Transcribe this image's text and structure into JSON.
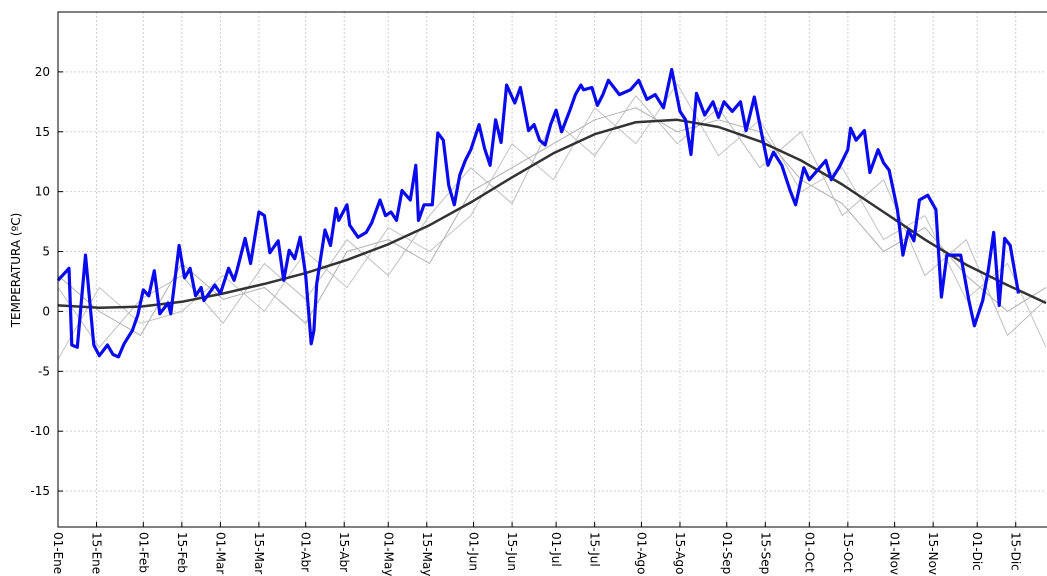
{
  "chart_data": {
    "type": "line",
    "ylabel": "TEMPERATURA (ºC)",
    "xlim": [
      0,
      359
    ],
    "ylim": [
      -18,
      25
    ],
    "grid": true,
    "yticks": [
      -15,
      -10,
      -5,
      0,
      5,
      10,
      15,
      20
    ],
    "xticks": [
      {
        "value": 0,
        "label": "01-Ene"
      },
      {
        "value": 14,
        "label": "15-Ene"
      },
      {
        "value": 31,
        "label": "01-Feb"
      },
      {
        "value": 45,
        "label": "15-Feb"
      },
      {
        "value": 59,
        "label": "01-Mar"
      },
      {
        "value": 73,
        "label": "15-Mar"
      },
      {
        "value": 90,
        "label": "01-Abr"
      },
      {
        "value": 104,
        "label": "15-Abr"
      },
      {
        "value": 120,
        "label": "01-May"
      },
      {
        "value": 134,
        "label": "15-May"
      },
      {
        "value": 151,
        "label": "01-Jun"
      },
      {
        "value": 165,
        "label": "15-Jun"
      },
      {
        "value": 181,
        "label": "01-Jul"
      },
      {
        "value": 195,
        "label": "15-Jul"
      },
      {
        "value": 212,
        "label": "01-Ago"
      },
      {
        "value": 226,
        "label": "15-Ago"
      },
      {
        "value": 243,
        "label": "01-Sep"
      },
      {
        "value": 257,
        "label": "15-Sep"
      },
      {
        "value": 273,
        "label": "01-Oct"
      },
      {
        "value": 287,
        "label": "15-Oct"
      },
      {
        "value": 304,
        "label": "01-Nov"
      },
      {
        "value": 318,
        "label": "15-Nov"
      },
      {
        "value": 334,
        "label": "01-Dic"
      },
      {
        "value": 348,
        "label": "15-Dic"
      }
    ],
    "series": [
      {
        "color": "#bdbdbd",
        "linewidth": 1,
        "x": [
          0,
          15,
          30,
          45,
          60,
          75,
          90,
          105,
          120,
          135,
          150,
          165,
          180,
          195,
          210,
          225,
          240,
          255,
          270,
          285,
          300,
          315,
          330,
          345,
          359
        ],
        "values": [
          2,
          -3,
          1,
          3,
          -1,
          4,
          1,
          6,
          3,
          8,
          12,
          9,
          16,
          13,
          18,
          14,
          17,
          12,
          15,
          8,
          11,
          3,
          6,
          -2,
          1
        ]
      },
      {
        "color": "#c4c4c4",
        "linewidth": 1,
        "x": [
          0,
          15,
          30,
          45,
          60,
          75,
          90,
          105,
          120,
          135,
          150,
          165,
          180,
          195,
          210,
          225,
          240,
          255,
          270,
          285,
          300,
          315,
          330,
          345,
          359
        ],
        "values": [
          -4,
          2,
          -1,
          0,
          3,
          0,
          5,
          2,
          7,
          5,
          8,
          14,
          11,
          17,
          14,
          19,
          13,
          16,
          10,
          12,
          6,
          8,
          1,
          4,
          -3
        ]
      },
      {
        "color": "#b0b0b0",
        "linewidth": 1,
        "x": [
          0,
          15,
          30,
          45,
          60,
          75,
          90,
          105,
          120,
          135,
          150,
          165,
          180,
          195,
          210,
          225,
          240,
          255,
          270,
          285,
          300,
          315,
          330,
          345,
          359
        ],
        "values": [
          3,
          0,
          -2,
          4,
          1,
          2,
          -1,
          5,
          6,
          4,
          10,
          12,
          14,
          16,
          17,
          15,
          16,
          15,
          11,
          9,
          5,
          7,
          3,
          0,
          2
        ]
      },
      {
        "color": "#333333",
        "linewidth": 2.5,
        "x": [
          0,
          15,
          30,
          45,
          60,
          75,
          90,
          105,
          120,
          135,
          150,
          165,
          180,
          195,
          210,
          225,
          240,
          255,
          270,
          285,
          300,
          315,
          330,
          345,
          359
        ],
        "values": [
          0.5,
          0.3,
          0.4,
          0.8,
          1.5,
          2.3,
          3.2,
          4.3,
          5.6,
          7.2,
          9.1,
          11.2,
          13.2,
          14.8,
          15.8,
          16.0,
          15.4,
          14.2,
          12.6,
          10.6,
          8.3,
          6.0,
          3.9,
          2.2,
          0.7
        ]
      },
      {
        "color": "#0a0aee",
        "linewidth": 3.2,
        "x": [
          0,
          4,
          5,
          7,
          10,
          13,
          15,
          18,
          20,
          22,
          24,
          27,
          29,
          31,
          33,
          35,
          37,
          40,
          41,
          44,
          46,
          48,
          50,
          52,
          53,
          57,
          59,
          62,
          64,
          65,
          68,
          70,
          73,
          75,
          77,
          80,
          82,
          84,
          86,
          88,
          90,
          92,
          93,
          94,
          97,
          99,
          101,
          102,
          105,
          106,
          109,
          112,
          114,
          117,
          119,
          121,
          123,
          125,
          128,
          130,
          131,
          133,
          136,
          138,
          140,
          142,
          144,
          146,
          148,
          150,
          153,
          155,
          157,
          159,
          161,
          163,
          166,
          168,
          171,
          173,
          175,
          177,
          179,
          181,
          183,
          186,
          188,
          190,
          191,
          194,
          196,
          198,
          200,
          204,
          208,
          211,
          214,
          217,
          220,
          223,
          226,
          228,
          230,
          232,
          235,
          238,
          240,
          242,
          245,
          248,
          250,
          251,
          253,
          255,
          258,
          260,
          263,
          266,
          268,
          271,
          273,
          276,
          279,
          281,
          284,
          287,
          288,
          290,
          293,
          295,
          298,
          300,
          302,
          305,
          307,
          309,
          311,
          313,
          316,
          319,
          321,
          323,
          326,
          328,
          331,
          333,
          336,
          338,
          340,
          342,
          344,
          346,
          349
        ],
        "values": [
          2.6,
          3.6,
          -2.8,
          -3.0,
          4.7,
          -2.8,
          -3.7,
          -2.8,
          -3.6,
          -3.8,
          -2.7,
          -1.6,
          -0.3,
          1.8,
          1.3,
          3.4,
          -0.2,
          0.7,
          -0.2,
          5.5,
          2.8,
          3.6,
          1.3,
          2.0,
          0.9,
          2.2,
          1.5,
          3.6,
          2.6,
          3.4,
          6.1,
          4.0,
          8.3,
          8.0,
          4.9,
          5.9,
          2.6,
          5.1,
          4.4,
          6.2,
          3.0,
          -2.7,
          -1.6,
          2.3,
          6.8,
          5.5,
          8.6,
          7.6,
          8.9,
          7.2,
          6.2,
          6.6,
          7.4,
          9.3,
          8.0,
          8.3,
          7.6,
          10.1,
          9.3,
          12.2,
          7.6,
          8.9,
          8.9,
          14.9,
          14.3,
          10.5,
          8.9,
          11.4,
          12.6,
          13.5,
          15.6,
          13.6,
          12.2,
          16.0,
          14.1,
          18.9,
          17.4,
          18.7,
          15.1,
          15.6,
          14.3,
          13.9,
          15.6,
          16.8,
          15.0,
          16.8,
          18.1,
          18.9,
          18.5,
          18.7,
          17.2,
          18.1,
          19.3,
          18.1,
          18.5,
          19.3,
          17.7,
          18.1,
          17.0,
          20.2,
          16.7,
          16.0,
          13.1,
          18.2,
          16.4,
          17.5,
          16.2,
          17.5,
          16.7,
          17.5,
          15.1,
          16.0,
          17.9,
          15.6,
          12.2,
          13.3,
          12.2,
          10.1,
          8.9,
          12.0,
          11.0,
          11.8,
          12.6,
          11.0,
          12.1,
          13.5,
          15.3,
          14.3,
          15.1,
          11.6,
          13.5,
          12.4,
          11.8,
          8.5,
          4.7,
          6.8,
          5.9,
          9.3,
          9.7,
          8.5,
          1.2,
          4.7,
          4.7,
          4.7,
          0.9,
          -1.2,
          0.9,
          3.4,
          6.6,
          0.5,
          6.1,
          5.5,
          1.5
        ]
      }
    ]
  }
}
